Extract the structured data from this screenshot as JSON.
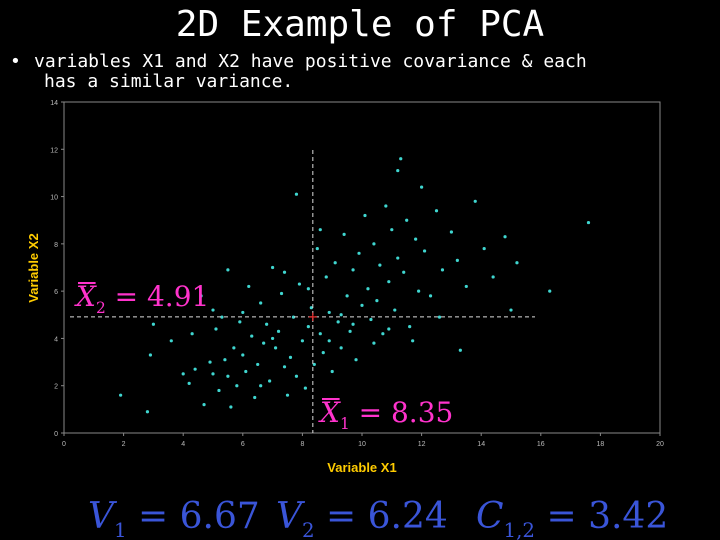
{
  "slide": {
    "title": "2D Example of PCA",
    "bullet_line1": "variables X1 and X2 have positive covariance & each",
    "bullet_line2": "has a similar variance."
  },
  "formulas": {
    "x2_mean": "X̄2 = 4.91",
    "x1_mean": "X̄1 = 8.35",
    "v1": "V1 = 6.67",
    "v2": "V2 = 6.24",
    "c12": "C1,2 = 3.42"
  },
  "colors": {
    "points": "#3fd6d0",
    "mean_marker": "#ff3030",
    "annotation": "#ff33cc",
    "axis_labels": "#ffcc00"
  },
  "chart_data": {
    "type": "scatter",
    "xlabel": "Variable X1",
    "ylabel": "Variable X2",
    "xlim": [
      0,
      20
    ],
    "ylim": [
      0,
      14
    ],
    "xticks": [
      0,
      2,
      4,
      6,
      8,
      10,
      12,
      14,
      16,
      18,
      20
    ],
    "yticks": [
      0,
      2,
      4,
      6,
      8,
      10,
      12,
      14
    ],
    "grid": false,
    "mean": [
      8.35,
      4.91
    ],
    "points": [
      [
        1.9,
        1.6
      ],
      [
        2.8,
        0.9
      ],
      [
        3.0,
        4.6
      ],
      [
        2.9,
        3.3
      ],
      [
        4.0,
        2.5
      ],
      [
        4.2,
        2.1
      ],
      [
        4.4,
        2.7
      ],
      [
        4.6,
        5.8
      ],
      [
        4.7,
        1.2
      ],
      [
        4.9,
        3.0
      ],
      [
        5.0,
        5.2
      ],
      [
        5.0,
        2.5
      ],
      [
        5.1,
        4.4
      ],
      [
        5.2,
        1.8
      ],
      [
        5.3,
        4.9
      ],
      [
        5.4,
        3.1
      ],
      [
        5.5,
        2.4
      ],
      [
        5.6,
        1.1
      ],
      [
        5.7,
        3.6
      ],
      [
        5.8,
        2.0
      ],
      [
        5.9,
        4.7
      ],
      [
        6.0,
        3.3
      ],
      [
        6.1,
        2.6
      ],
      [
        6.2,
        6.2
      ],
      [
        6.3,
        4.1
      ],
      [
        6.4,
        1.5
      ],
      [
        6.5,
        2.9
      ],
      [
        6.6,
        5.5
      ],
      [
        6.7,
        3.8
      ],
      [
        6.8,
        4.6
      ],
      [
        6.9,
        2.2
      ],
      [
        7.0,
        7.0
      ],
      [
        7.1,
        3.6
      ],
      [
        7.2,
        4.3
      ],
      [
        7.3,
        5.9
      ],
      [
        7.4,
        2.8
      ],
      [
        7.5,
        1.6
      ],
      [
        7.6,
        3.2
      ],
      [
        7.7,
        4.9
      ],
      [
        7.8,
        2.4
      ],
      [
        7.9,
        6.3
      ],
      [
        8.0,
        3.9
      ],
      [
        8.1,
        1.9
      ],
      [
        8.2,
        4.5
      ],
      [
        8.3,
        5.3
      ],
      [
        8.4,
        2.9
      ],
      [
        8.5,
        7.8
      ],
      [
        8.6,
        4.2
      ],
      [
        8.7,
        3.4
      ],
      [
        8.8,
        6.6
      ],
      [
        8.9,
        5.1
      ],
      [
        9.0,
        2.6
      ],
      [
        9.1,
        7.2
      ],
      [
        9.2,
        4.7
      ],
      [
        9.3,
        3.6
      ],
      [
        9.4,
        8.4
      ],
      [
        9.5,
        5.8
      ],
      [
        9.6,
        4.3
      ],
      [
        9.7,
        6.9
      ],
      [
        9.8,
        3.1
      ],
      [
        9.9,
        7.6
      ],
      [
        10.0,
        5.4
      ],
      [
        10.1,
        9.2
      ],
      [
        10.2,
        6.1
      ],
      [
        10.3,
        4.8
      ],
      [
        10.4,
        8.0
      ],
      [
        10.5,
        5.6
      ],
      [
        10.6,
        7.1
      ],
      [
        10.7,
        4.2
      ],
      [
        10.8,
        9.6
      ],
      [
        10.9,
        6.4
      ],
      [
        11.0,
        8.6
      ],
      [
        11.1,
        5.2
      ],
      [
        11.2,
        7.4
      ],
      [
        11.3,
        11.6
      ],
      [
        11.4,
        6.8
      ],
      [
        11.5,
        9.0
      ],
      [
        11.6,
        4.5
      ],
      [
        11.8,
        8.2
      ],
      [
        11.9,
        6.0
      ],
      [
        12.0,
        10.4
      ],
      [
        12.1,
        7.7
      ],
      [
        12.3,
        5.8
      ],
      [
        12.5,
        9.4
      ],
      [
        12.7,
        6.9
      ],
      [
        13.0,
        8.5
      ],
      [
        13.2,
        7.3
      ],
      [
        13.5,
        6.2
      ],
      [
        13.8,
        9.8
      ],
      [
        14.1,
        7.8
      ],
      [
        14.4,
        6.6
      ],
      [
        14.8,
        8.3
      ],
      [
        15.2,
        7.2
      ],
      [
        16.3,
        6.0
      ],
      [
        17.6,
        8.9
      ],
      [
        3.6,
        3.9
      ],
      [
        4.3,
        4.2
      ],
      [
        5.5,
        6.9
      ],
      [
        6.0,
        5.1
      ],
      [
        6.6,
        2.0
      ],
      [
        7.0,
        4.0
      ],
      [
        7.4,
        6.8
      ],
      [
        7.8,
        10.1
      ],
      [
        8.2,
        6.1
      ],
      [
        8.6,
        8.6
      ],
      [
        8.9,
        3.9
      ],
      [
        9.3,
        5.0
      ],
      [
        9.7,
        4.6
      ],
      [
        10.4,
        3.8
      ],
      [
        10.9,
        4.4
      ],
      [
        11.2,
        11.1
      ],
      [
        11.7,
        3.9
      ],
      [
        12.6,
        4.9
      ],
      [
        13.3,
        3.5
      ],
      [
        15.0,
        5.2
      ]
    ]
  }
}
